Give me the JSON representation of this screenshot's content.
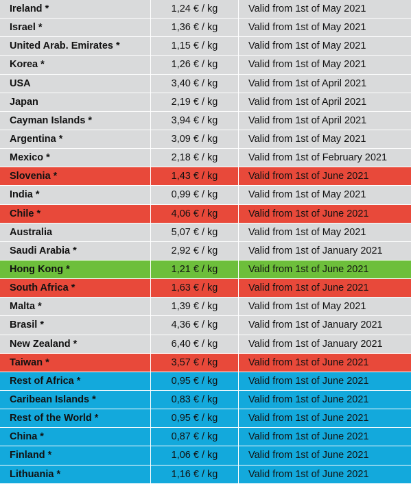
{
  "colors": {
    "grey": "#d9dadb",
    "red": "#e8493a",
    "green": "#6dbf3b",
    "blue": "#13a9dc"
  },
  "rows": [
    {
      "country": "Ireland *",
      "price": "1,24 € / kg",
      "valid": "Valid from 1st of May 2021",
      "color": "grey"
    },
    {
      "country": "Israel *",
      "price": "1,36 € / kg",
      "valid": "Valid from 1st of May 2021",
      "color": "grey"
    },
    {
      "country": "United Arab. Emirates *",
      "price": "1,15 € / kg",
      "valid": "Valid from 1st of May 2021",
      "color": "grey"
    },
    {
      "country": "Korea *",
      "price": "1,26 € / kg",
      "valid": "Valid from 1st of May 2021",
      "color": "grey"
    },
    {
      "country": "USA",
      "price": "3,40 € / kg",
      "valid": "Valid from 1st of April 2021",
      "color": "grey"
    },
    {
      "country": "Japan",
      "price": "2,19 € / kg",
      "valid": "Valid from 1st of April 2021",
      "color": "grey"
    },
    {
      "country": "Cayman Islands *",
      "price": "3,94 € / kg",
      "valid": "Valid from 1st of April 2021",
      "color": "grey"
    },
    {
      "country": "Argentina *",
      "price": "3,09 € / kg",
      "valid": "Valid from 1st of May 2021",
      "color": "grey"
    },
    {
      "country": "Mexico *",
      "price": "2,18 € / kg",
      "valid": "Valid from 1st of February 2021",
      "color": "grey"
    },
    {
      "country": "Slovenia *",
      "price": "1,43 € / kg",
      "valid": "Valid from 1st of June 2021",
      "color": "red"
    },
    {
      "country": "India *",
      "price": "0,99 € / kg",
      "valid": "Valid from 1st of May 2021",
      "color": "grey"
    },
    {
      "country": "Chile *",
      "price": "4,06 € / kg",
      "valid": "Valid from 1st of June 2021",
      "color": "red"
    },
    {
      "country": "Australia",
      "price": "5,07 € / kg",
      "valid": "Valid from 1st of May 2021",
      "color": "grey"
    },
    {
      "country": "Saudi Arabia *",
      "price": "2,92 € / kg",
      "valid": "Valid from 1st of January 2021",
      "color": "grey"
    },
    {
      "country": "Hong Kong *",
      "price": "1,21 € / kg",
      "valid": "Valid from 1st of June 2021",
      "color": "green"
    },
    {
      "country": "South Africa *",
      "price": "1,63 € / kg",
      "valid": "Valid from 1st of June 2021",
      "color": "red"
    },
    {
      "country": "Malta *",
      "price": "1,39 € / kg",
      "valid": "Valid from 1st of May 2021",
      "color": "grey"
    },
    {
      "country": "Brasil *",
      "price": "4,36 € / kg",
      "valid": "Valid from 1st of January 2021",
      "color": "grey"
    },
    {
      "country": "New Zealand *",
      "price": "6,40 € / kg",
      "valid": "Valid from 1st of January 2021",
      "color": "grey"
    },
    {
      "country": "Taiwan *",
      "price": "3,57 € / kg",
      "valid": "Valid from 1st of June 2021",
      "color": "red"
    },
    {
      "country": "Rest of Africa *",
      "price": "0,95 € / kg",
      "valid": "Valid from 1st of June 2021",
      "color": "blue"
    },
    {
      "country": "Caribean Islands *",
      "price": "0,83 € / kg",
      "valid": "Valid from 1st of June 2021",
      "color": "blue"
    },
    {
      "country": "Rest of the World *",
      "price": "0,95 € / kg",
      "valid": "Valid from 1st of June 2021",
      "color": "blue"
    },
    {
      "country": "China *",
      "price": "0,87 € / kg",
      "valid": "Valid from 1st of June 2021",
      "color": "blue"
    },
    {
      "country": "Finland *",
      "price": "1,06 € / kg",
      "valid": "Valid from 1st of June 2021",
      "color": "blue"
    },
    {
      "country": "Lithuania *",
      "price": "1,16 € / kg",
      "valid": "Valid from 1st of June 2021",
      "color": "blue"
    }
  ]
}
